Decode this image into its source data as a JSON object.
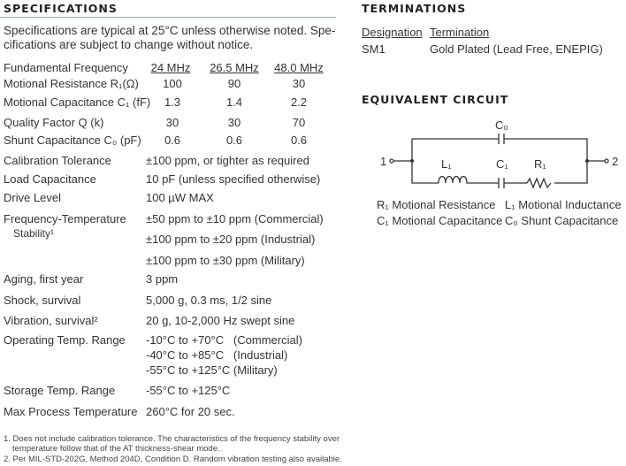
{
  "specifications": {
    "title": "SPECIFICATIONS",
    "intro_line1": "Specifications are typical at 25°C unless otherwise noted. Spe-",
    "intro_line2": "cifications are subject to change without notice.",
    "freq_table": {
      "header_label": "Fundamental Frequency",
      "columns": [
        "24 MHz",
        "26.5 MHz",
        "48.0 MHz"
      ],
      "rows": [
        {
          "label": "Motional Resistance R₁(Ω)",
          "values": [
            "100",
            "90",
            "30"
          ]
        },
        {
          "label": "Motional Capacitance C₁ (fF)",
          "values": [
            "1.3",
            "1.4",
            "2.2"
          ]
        },
        {
          "label": "Quality Factor Q (k)",
          "values": [
            "30",
            "30",
            "70"
          ]
        },
        {
          "label": "Shunt Capacitance C₀ (pF)",
          "values": [
            "0.6",
            "0.6",
            "0.6"
          ]
        }
      ]
    },
    "params": [
      {
        "label": "Calibration Tolerance",
        "value": "±100 ppm, or tighter as required"
      },
      {
        "label": "Load Capacitance",
        "value": "10 pF (unless specified otherwise)"
      },
      {
        "label": "Drive Level",
        "value": "100 µW MAX"
      },
      {
        "label": "Frequency-Temperature",
        "label2": "Stability¹",
        "values": [
          "±50 ppm to ±10 ppm (Commercial)",
          "±100 ppm to ±20 ppm (Industrial)",
          "±100 ppm to ±30 ppm (Military)"
        ]
      },
      {
        "label": "Aging, first year",
        "value": "3 ppm"
      },
      {
        "label": "Shock, survival",
        "value": "5,000 g, 0.3 ms, 1/2 sine"
      },
      {
        "label": "Vibration, survival²",
        "value": "20 g, 10-2,000 Hz swept sine"
      },
      {
        "label": "Operating Temp. Range",
        "values": [
          "-10°C to +70°C   (Commercial)",
          "-40°C to +85°C   (Industrial)",
          "-55°C to +125°C (Military)"
        ]
      },
      {
        "label": "Storage Temp. Range",
        "value": "-55°C to +125°C"
      },
      {
        "label": "Max Process Temperature",
        "value": "260°C for 20 sec."
      }
    ],
    "footnotes": [
      "1. Does not include calibration tolerance. The characteristics of the frequency stability over",
      "temperature follow that of the AT thickness-shear mode.",
      "2. Per MIL-STD-202G, Method 204D, Condition D. Random vibration testing also available."
    ]
  },
  "terminations": {
    "title": "TERMINATIONS",
    "headers": [
      "Designation",
      "Termination"
    ],
    "rows": [
      [
        "SM1",
        "Gold Plated (Lead Free, ENEPIG)"
      ]
    ]
  },
  "circuit": {
    "title": "EQUIVALENT CIRCUIT",
    "labels": {
      "c0": "C₀",
      "l1": "L₁",
      "c1": "C₁",
      "r1": "R₁",
      "t1": "1",
      "t2": "2"
    },
    "legend": [
      "R₁ Motional Resistance",
      "L₁ Motional Inductance",
      "C₁ Motional Capacitance",
      "C₀ Shunt Capacitance"
    ]
  }
}
